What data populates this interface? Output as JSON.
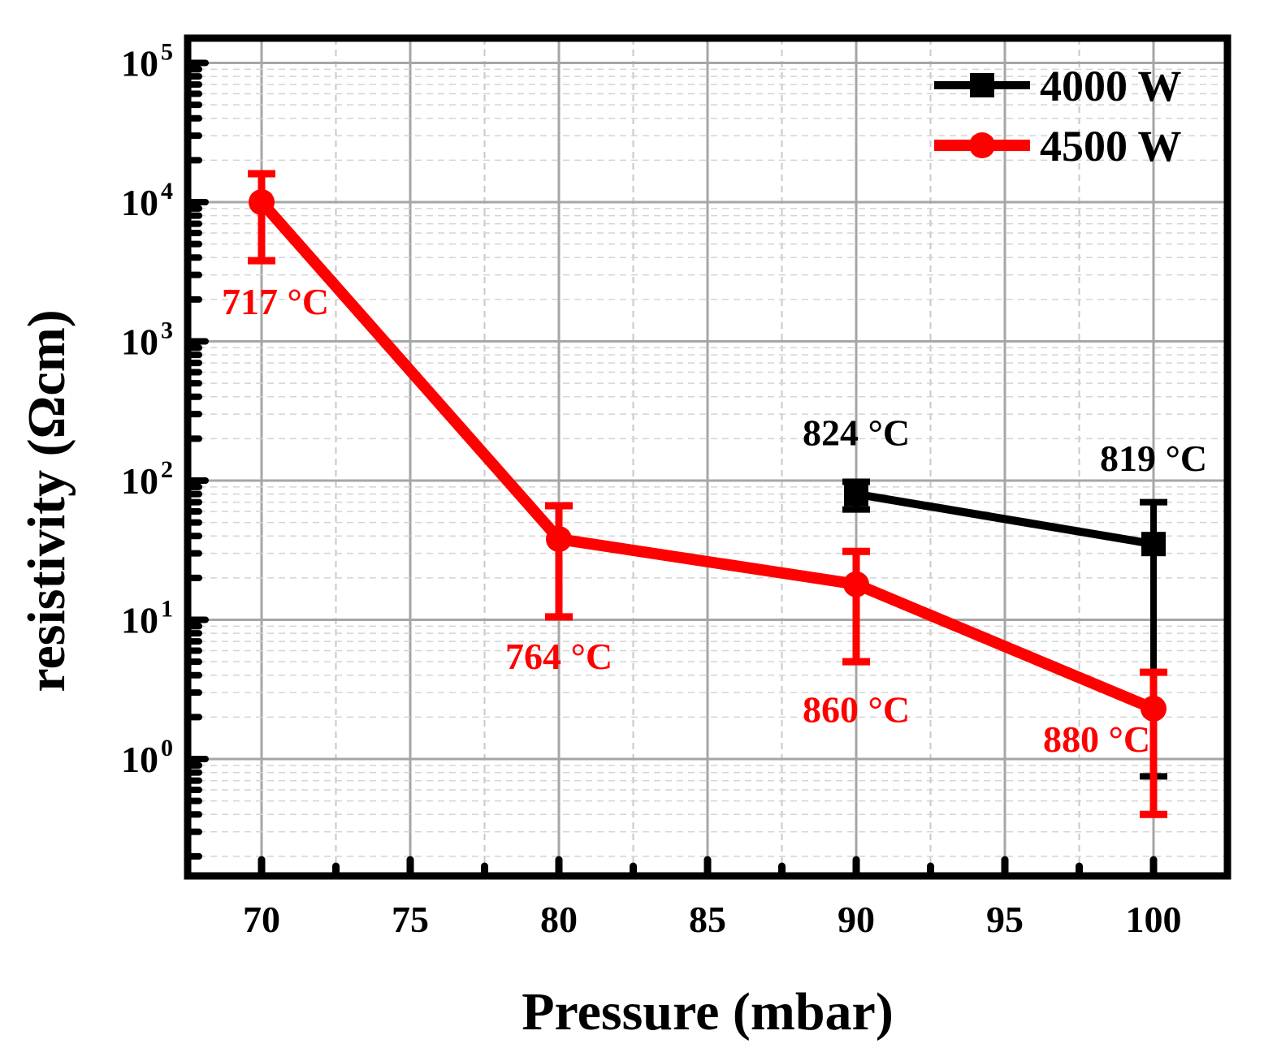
{
  "chart_data": {
    "type": "line",
    "xlabel": "Pressure (mbar)",
    "ylabel": "resistivity (Ωcm)",
    "x_ticks": [
      "70",
      "75",
      "80",
      "85",
      "90",
      "95",
      "100"
    ],
    "xlim": [
      67.5,
      102.5
    ],
    "y_scale": "log",
    "ylim": [
      0.15,
      100000
    ],
    "y_tick_exponents": [
      "5",
      "4",
      "3",
      "2",
      "1",
      "0"
    ],
    "y_tick_base": "10",
    "grid": true,
    "legend_position": "top-right",
    "series": [
      {
        "name": "4000 W",
        "color": "#000000",
        "marker": "square",
        "points": [
          {
            "x": 90,
            "y": 80,
            "err_low": 62,
            "err_high": 98
          },
          {
            "x": 100,
            "y": 35,
            "err_low": 0.75,
            "err_high": 70
          }
        ],
        "annotations": [
          "824 °C",
          "819 °C"
        ]
      },
      {
        "name": "4500 W",
        "color": "#ff0000",
        "marker": "circle",
        "points": [
          {
            "x": 70,
            "y": 10000,
            "err_low": 3800,
            "err_high": 16000
          },
          {
            "x": 80,
            "y": 38,
            "err_low": 10.5,
            "err_high": 66
          },
          {
            "x": 90,
            "y": 18,
            "err_low": 5,
            "err_high": 31
          },
          {
            "x": 100,
            "y": 2.3,
            "err_low": 0.4,
            "err_high": 4.2
          }
        ],
        "annotations": [
          "717 °C",
          "764 °C",
          "860 °C",
          "880 °C"
        ]
      }
    ]
  }
}
